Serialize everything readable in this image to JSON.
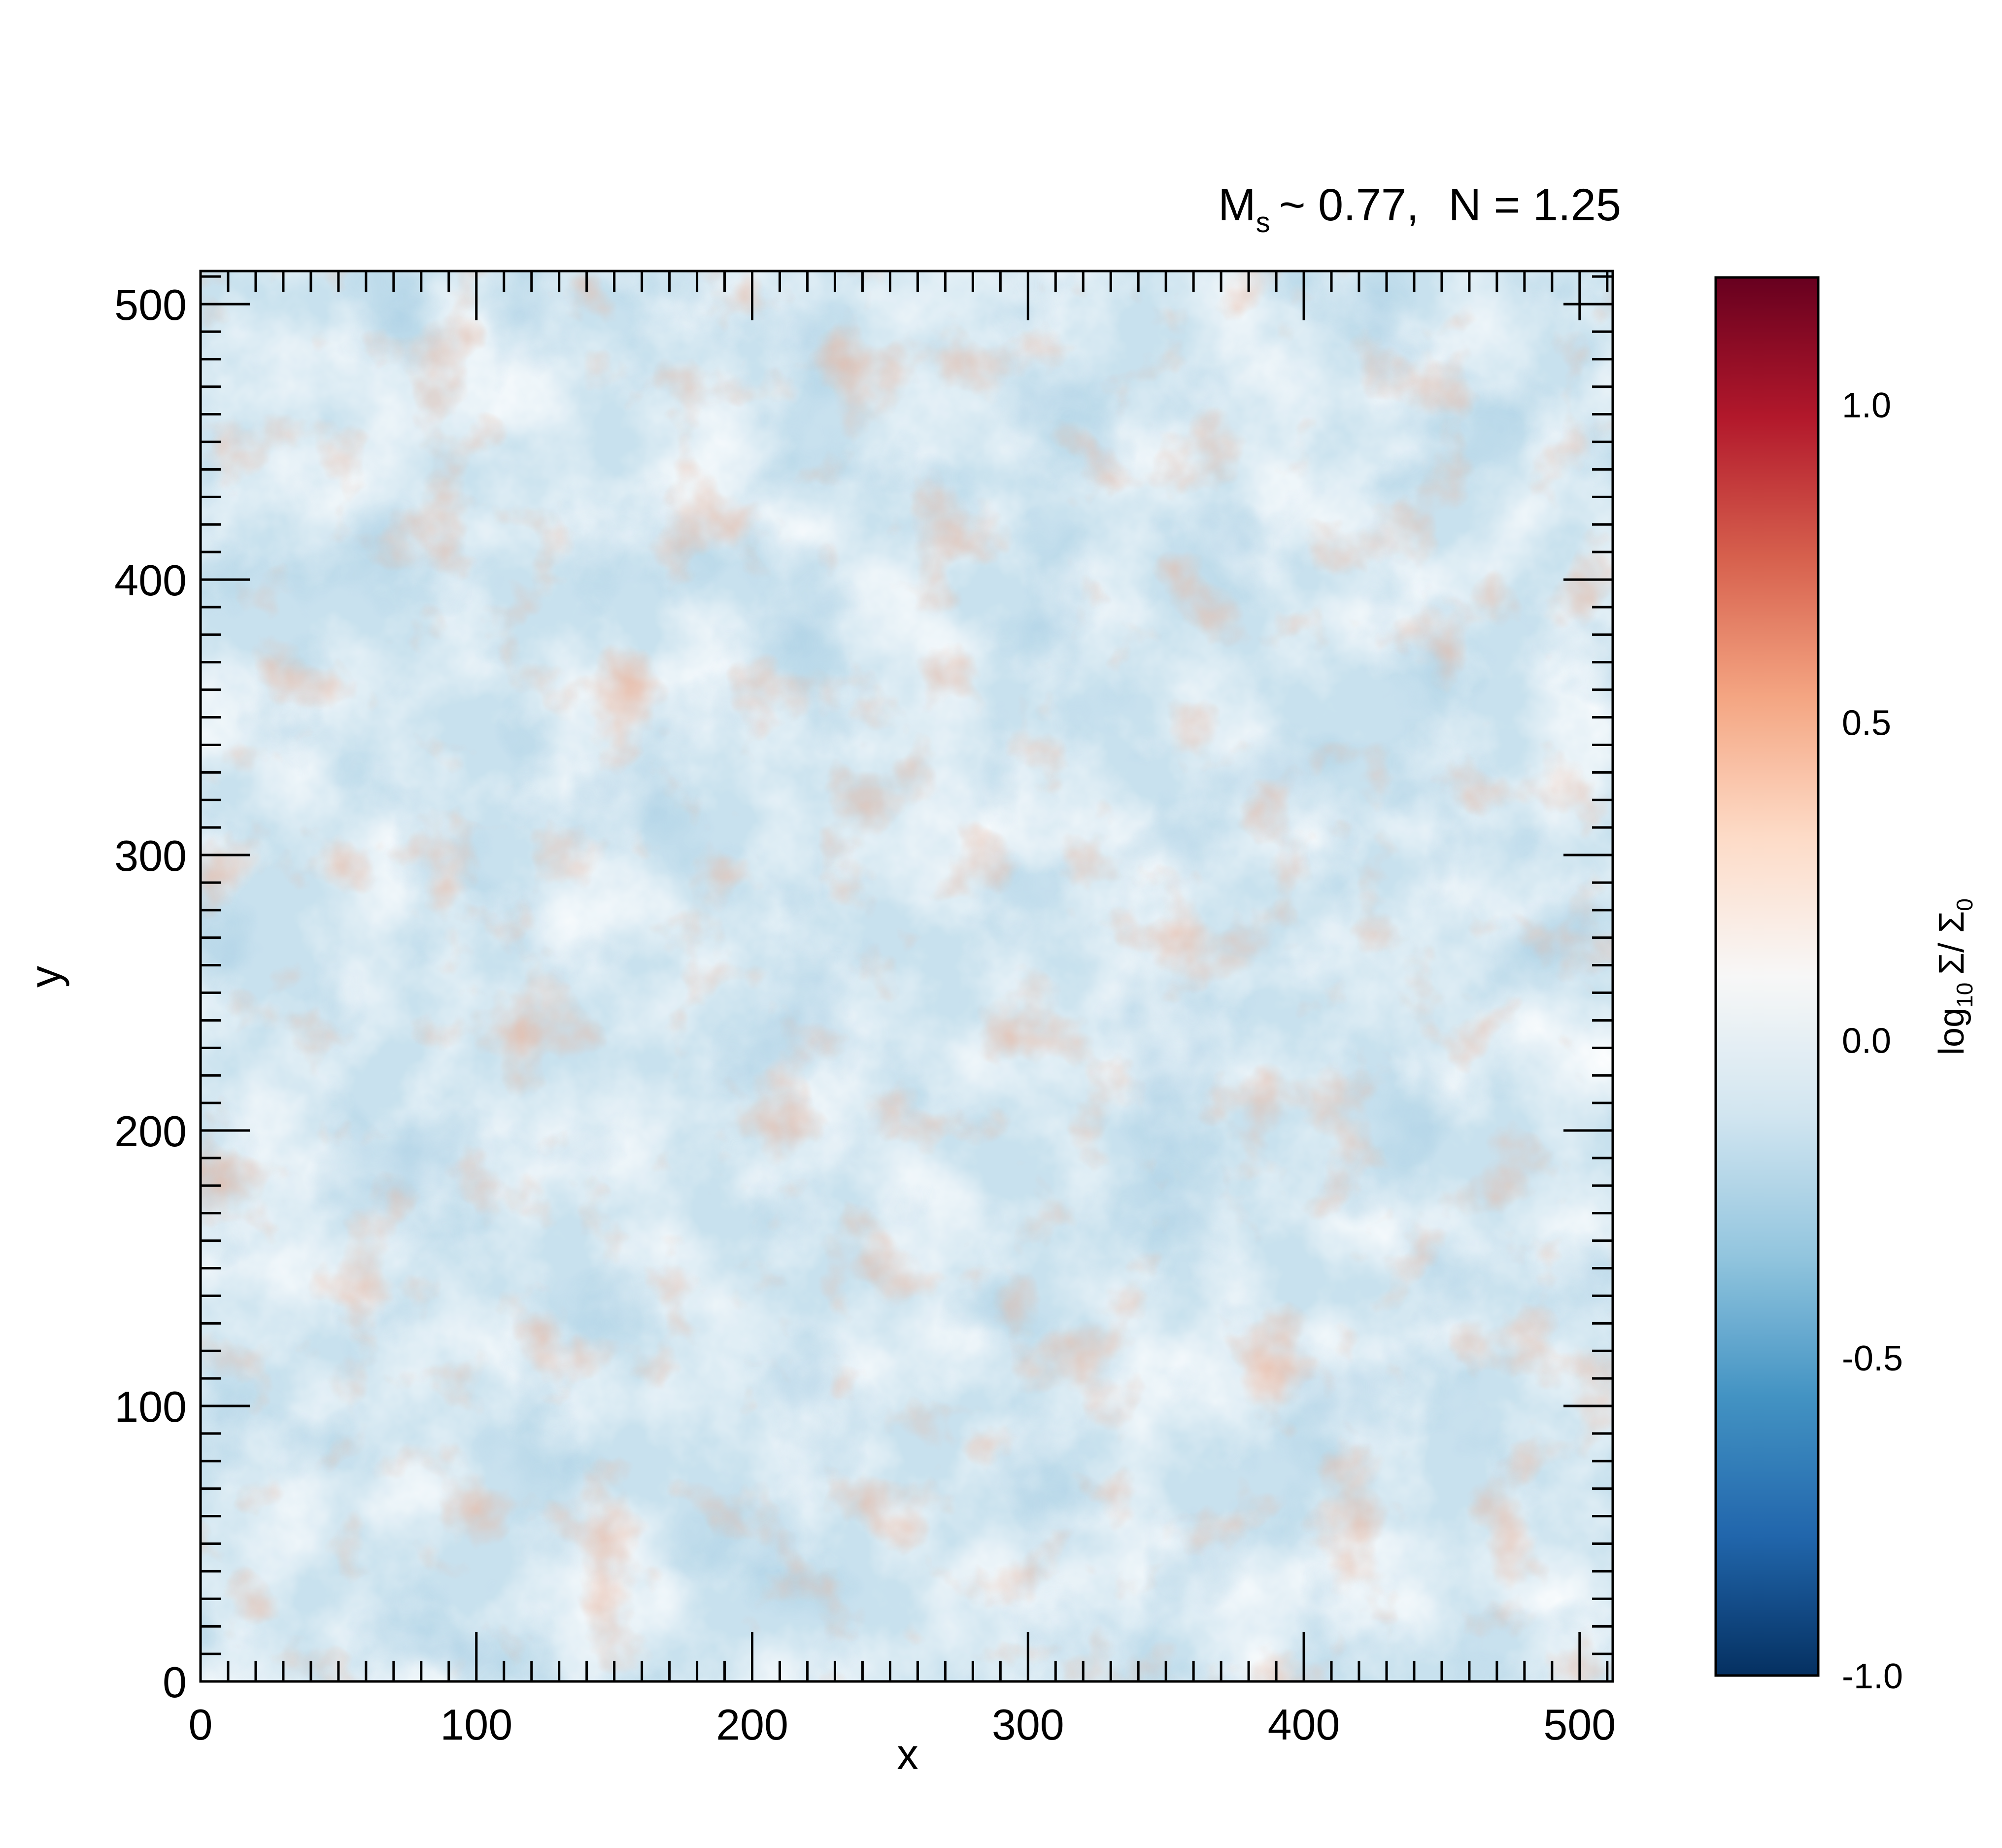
{
  "chart_data": {
    "type": "heatmap",
    "title": {
      "m_symbol": "M",
      "m_sub": "s",
      "m_value": "~ 0.77,",
      "n_part": "N = 1.25"
    },
    "xlabel": "x",
    "ylabel": "y",
    "xlim": [
      0,
      512
    ],
    "ylim": [
      0,
      512
    ],
    "xticks": [
      0,
      100,
      200,
      300,
      400,
      500
    ],
    "yticks": [
      0,
      100,
      200,
      300,
      400,
      500
    ],
    "xtick_labels": [
      "0",
      "100",
      "200",
      "300",
      "400",
      "500"
    ],
    "ytick_labels": [
      "0",
      "100",
      "200",
      "300",
      "400",
      "500"
    ],
    "minor_tick_step": 10,
    "grid": false,
    "colorbar": {
      "label": {
        "log": "log",
        "log_sub": "10",
        "sigma": "Σ/ Σ",
        "sigma_sub": "0"
      },
      "range": [
        -1.0,
        1.2
      ],
      "ticks": [
        -1.0,
        -0.5,
        0.0,
        0.5,
        1.0
      ],
      "tick_labels": [
        "-1.0",
        "-0.5",
        "0.0",
        "0.5",
        "1.0"
      ],
      "colormap": "RdBu_r",
      "colors": [
        "#053061",
        "#2166ac",
        "#4393c3",
        "#92c5de",
        "#d1e5f0",
        "#f7f7f7",
        "#fddbc7",
        "#f4a582",
        "#d6604d",
        "#b2182b",
        "#67001f"
      ]
    },
    "field_summary": {
      "background_value": -0.15,
      "value_range_shown": [
        -0.45,
        0.3
      ],
      "description_values": "mostly slightly negative log surface density with small positive patches"
    }
  }
}
